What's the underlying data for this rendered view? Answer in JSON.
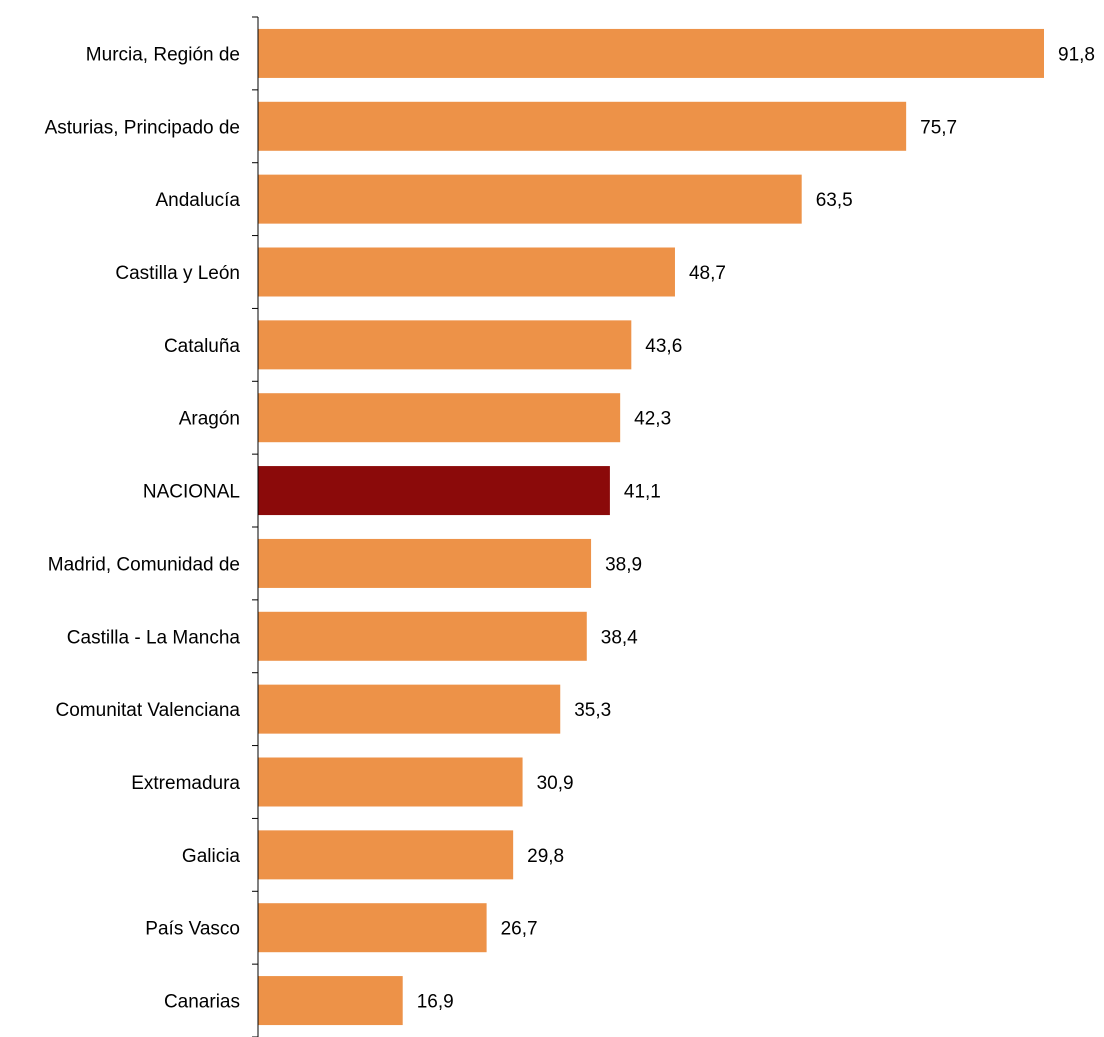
{
  "chart_data": {
    "type": "bar",
    "orientation": "horizontal",
    "title": "",
    "xlabel": "",
    "ylabel": "",
    "xlim": [
      0,
      92
    ],
    "grid": false,
    "legend": "none",
    "categories": [
      "Murcia, Región de",
      "Asturias, Principado de",
      "Andalucía",
      "Castilla y León",
      "Cataluña",
      "Aragón",
      "NACIONAL",
      "Madrid, Comunidad de",
      "Castilla - La Mancha",
      "Comunitat Valenciana",
      "Extremadura",
      "Galicia",
      "País Vasco",
      "Canarias"
    ],
    "values": [
      91.8,
      75.7,
      63.5,
      48.7,
      43.6,
      42.3,
      41.1,
      38.9,
      38.4,
      35.3,
      30.9,
      29.8,
      26.7,
      16.9
    ],
    "value_labels": [
      "91,8",
      "75,7",
      "63,5",
      "48,7",
      "43,6",
      "42,3",
      "41,1",
      "38,9",
      "38,4",
      "35,3",
      "30,9",
      "29,8",
      "26,7",
      "16,9"
    ],
    "highlight_category": "NACIONAL",
    "colors": {
      "bar": "#ED9248",
      "highlight": "#8B0A0A",
      "axis": "#000000"
    }
  }
}
